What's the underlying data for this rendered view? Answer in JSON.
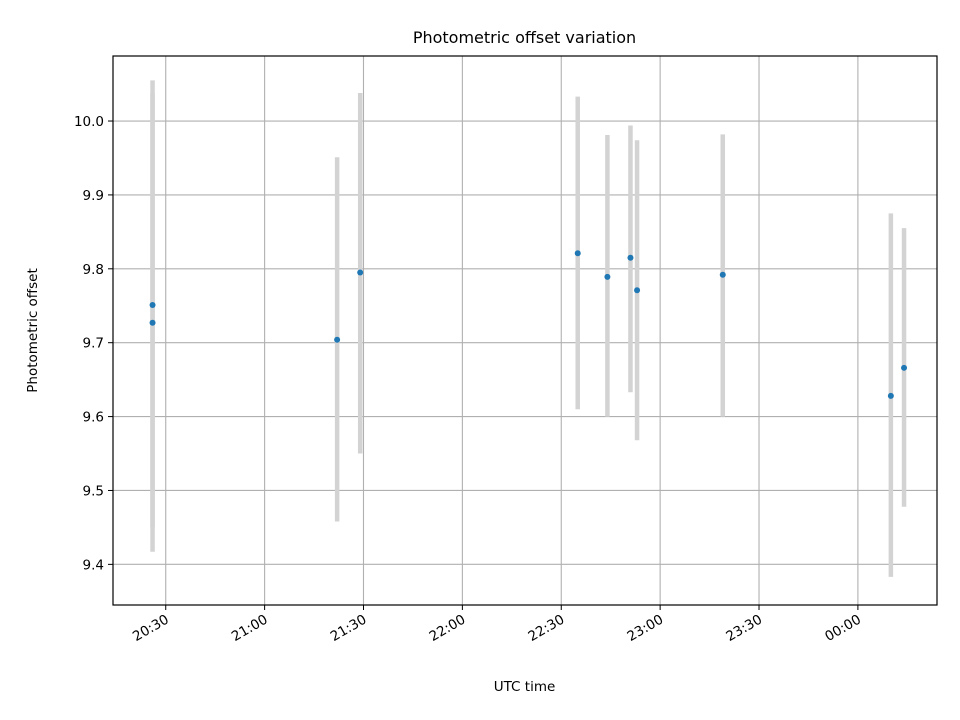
{
  "chart_data": {
    "type": "scatter",
    "title": "Photometric offset variation",
    "xlabel": "UTC time",
    "ylabel": "Photometric offset",
    "x_tick_labels": [
      "20:30",
      "21:00",
      "21:30",
      "22:00",
      "22:30",
      "23:00",
      "23:30",
      "00:00"
    ],
    "y_tick_labels": [
      "9.4",
      "9.5",
      "9.6",
      "9.7",
      "9.8",
      "9.9",
      "10.0"
    ],
    "x_ticks": [
      "20:30",
      "21:00",
      "21:30",
      "22:00",
      "22:30",
      "23:00",
      "23:30",
      "00:00"
    ],
    "y_ticks": [
      9.4,
      9.5,
      9.6,
      9.7,
      9.8,
      9.9,
      10.0
    ],
    "xlim": [
      "20:14",
      "00:24"
    ],
    "ylim": [
      9.345,
      10.088
    ],
    "grid": true,
    "series": [
      {
        "x": [
          "20:26",
          "20:26",
          "21:22",
          "21:29",
          "22:35",
          "22:44",
          "22:51",
          "22:53",
          "23:19",
          "00:10",
          "00:14"
        ],
        "y": [
          9.751,
          9.727,
          9.704,
          9.795,
          9.821,
          9.789,
          9.815,
          9.771,
          9.792,
          9.628,
          9.666
        ],
        "yerr_low": [
          9.45,
          9.417,
          9.458,
          9.55,
          9.61,
          9.6,
          9.633,
          9.568,
          9.6,
          9.383,
          9.478
        ],
        "yerr_high": [
          10.055,
          10.037,
          9.951,
          10.038,
          10.033,
          9.981,
          9.994,
          9.974,
          9.982,
          9.875,
          9.855
        ]
      }
    ],
    "colors": {
      "marker": "#1f77b4",
      "errorbar": "#d3d3d3",
      "grid": "#b0b0b0",
      "axes": "#000000"
    }
  }
}
